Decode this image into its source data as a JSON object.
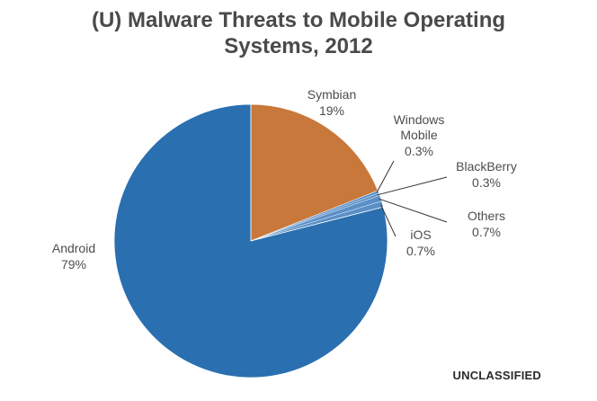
{
  "header": {
    "title_line1": "(U)  Malware Threats to Mobile Operating",
    "title_line2": "Systems, 2012"
  },
  "footer": {
    "classification": "UNCLASSIFIED"
  },
  "colors": {
    "android": "#2a6fb0",
    "symbian": "#c8783a",
    "small_slices": "#5b8fc7",
    "leader": "#333333"
  },
  "chart_data": {
    "type": "pie",
    "title": "(U)  Malware Threats to Mobile Operating Systems, 2012",
    "slices": [
      {
        "name": "Symbian",
        "value": 19,
        "label": "19%"
      },
      {
        "name": "Windows Mobile",
        "value": 0.3,
        "label": "0.3%"
      },
      {
        "name": "BlackBerry",
        "value": 0.3,
        "label": "0.3%"
      },
      {
        "name": "Others",
        "value": 0.7,
        "label": "0.7%"
      },
      {
        "name": "iOS",
        "value": 0.7,
        "label": "0.7%"
      },
      {
        "name": "Android",
        "value": 79,
        "label": "79%"
      }
    ],
    "start": "12 o'clock",
    "direction": "clockwise",
    "legend": "none",
    "labels": "outside slices"
  }
}
